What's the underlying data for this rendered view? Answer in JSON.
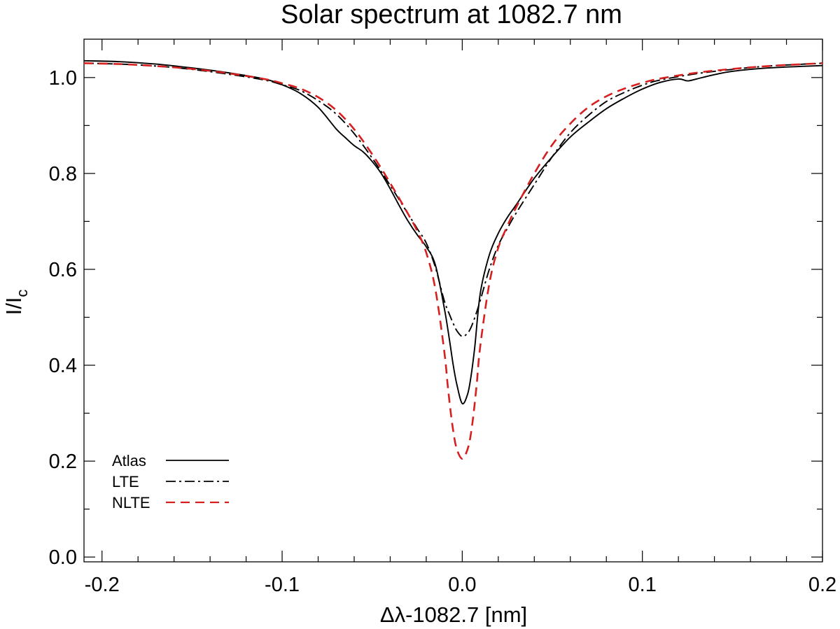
{
  "chart_data": {
    "type": "line",
    "title": "Solar spectrum at 1082.7 nm",
    "xlabel": "Δλ-1082.7 [nm]",
    "ylabel_main": "I/I",
    "ylabel_sub": "c",
    "xlim": [
      -0.21,
      0.2
    ],
    "ylim": [
      -0.01,
      1.08
    ],
    "xticks": [
      -0.2,
      -0.1,
      0.0,
      0.1,
      0.2
    ],
    "xtick_labels": [
      "-0.2",
      "-0.1",
      "0.0",
      "0.1",
      "0.2"
    ],
    "yticks": [
      0.0,
      0.2,
      0.4,
      0.6,
      0.8,
      1.0
    ],
    "ytick_labels": [
      "0.0",
      "0.2",
      "0.4",
      "0.6",
      "0.8",
      "1.0"
    ],
    "legend_position": "bottom-left",
    "series": [
      {
        "name": "Atlas",
        "color": "#000000",
        "style": "solid",
        "x": [
          -0.21,
          -0.19,
          -0.17,
          -0.15,
          -0.13,
          -0.11,
          -0.1,
          -0.09,
          -0.08,
          -0.07,
          -0.065,
          -0.06,
          -0.055,
          -0.05,
          -0.045,
          -0.04,
          -0.035,
          -0.03,
          -0.025,
          -0.02,
          -0.015,
          -0.01,
          -0.007,
          -0.005,
          -0.003,
          0.0,
          0.003,
          0.005,
          0.007,
          0.01,
          0.015,
          0.02,
          0.025,
          0.03,
          0.04,
          0.05,
          0.06,
          0.07,
          0.08,
          0.09,
          0.1,
          0.11,
          0.12,
          0.125,
          0.13,
          0.14,
          0.15,
          0.17,
          0.2
        ],
        "values": [
          1.035,
          1.033,
          1.028,
          1.02,
          1.01,
          0.997,
          0.985,
          0.967,
          0.938,
          0.893,
          0.875,
          0.858,
          0.845,
          0.825,
          0.8,
          0.768,
          0.733,
          0.7,
          0.672,
          0.647,
          0.61,
          0.52,
          0.45,
          0.4,
          0.36,
          0.32,
          0.34,
          0.38,
          0.44,
          0.55,
          0.63,
          0.675,
          0.708,
          0.735,
          0.79,
          0.835,
          0.876,
          0.907,
          0.935,
          0.957,
          0.976,
          0.99,
          0.997,
          0.993,
          0.997,
          1.006,
          1.013,
          1.02,
          1.025
        ]
      },
      {
        "name": "LTE",
        "color": "#000000",
        "style": "dashdot",
        "x": [
          -0.21,
          -0.19,
          -0.17,
          -0.15,
          -0.13,
          -0.11,
          -0.1,
          -0.09,
          -0.08,
          -0.07,
          -0.06,
          -0.05,
          -0.04,
          -0.03,
          -0.025,
          -0.02,
          -0.015,
          -0.01,
          -0.007,
          -0.005,
          -0.003,
          0.0,
          0.003,
          0.005,
          0.007,
          0.01,
          0.015,
          0.02,
          0.025,
          0.03,
          0.04,
          0.05,
          0.06,
          0.07,
          0.08,
          0.09,
          0.1,
          0.11,
          0.13,
          0.15,
          0.17,
          0.19,
          0.2
        ],
        "values": [
          1.03,
          1.028,
          1.024,
          1.017,
          1.007,
          0.995,
          0.985,
          0.973,
          0.952,
          0.924,
          0.883,
          0.832,
          0.775,
          0.715,
          0.685,
          0.655,
          0.605,
          0.535,
          0.505,
          0.487,
          0.472,
          0.46,
          0.467,
          0.48,
          0.5,
          0.535,
          0.6,
          0.65,
          0.685,
          0.718,
          0.777,
          0.835,
          0.885,
          0.921,
          0.95,
          0.969,
          0.984,
          0.995,
          1.008,
          1.017,
          1.024,
          1.028,
          1.03
        ]
      },
      {
        "name": "NLTE",
        "color": "#d62020",
        "style": "dashed",
        "x": [
          -0.21,
          -0.19,
          -0.17,
          -0.15,
          -0.13,
          -0.11,
          -0.1,
          -0.09,
          -0.08,
          -0.07,
          -0.06,
          -0.05,
          -0.04,
          -0.03,
          -0.025,
          -0.02,
          -0.015,
          -0.01,
          -0.008,
          -0.006,
          -0.004,
          -0.002,
          0.0,
          0.002,
          0.004,
          0.006,
          0.008,
          0.01,
          0.015,
          0.02,
          0.025,
          0.03,
          0.04,
          0.05,
          0.06,
          0.07,
          0.08,
          0.09,
          0.1,
          0.11,
          0.13,
          0.15,
          0.17,
          0.19,
          0.2
        ],
        "values": [
          1.03,
          1.028,
          1.024,
          1.018,
          1.009,
          0.997,
          0.988,
          0.977,
          0.959,
          0.932,
          0.892,
          0.84,
          0.78,
          0.715,
          0.68,
          0.635,
          0.56,
          0.43,
          0.355,
          0.29,
          0.24,
          0.215,
          0.205,
          0.215,
          0.24,
          0.29,
          0.36,
          0.44,
          0.57,
          0.645,
          0.69,
          0.73,
          0.8,
          0.86,
          0.904,
          0.938,
          0.961,
          0.977,
          0.989,
          0.998,
          1.01,
          1.018,
          1.024,
          1.028,
          1.03
        ]
      }
    ]
  }
}
